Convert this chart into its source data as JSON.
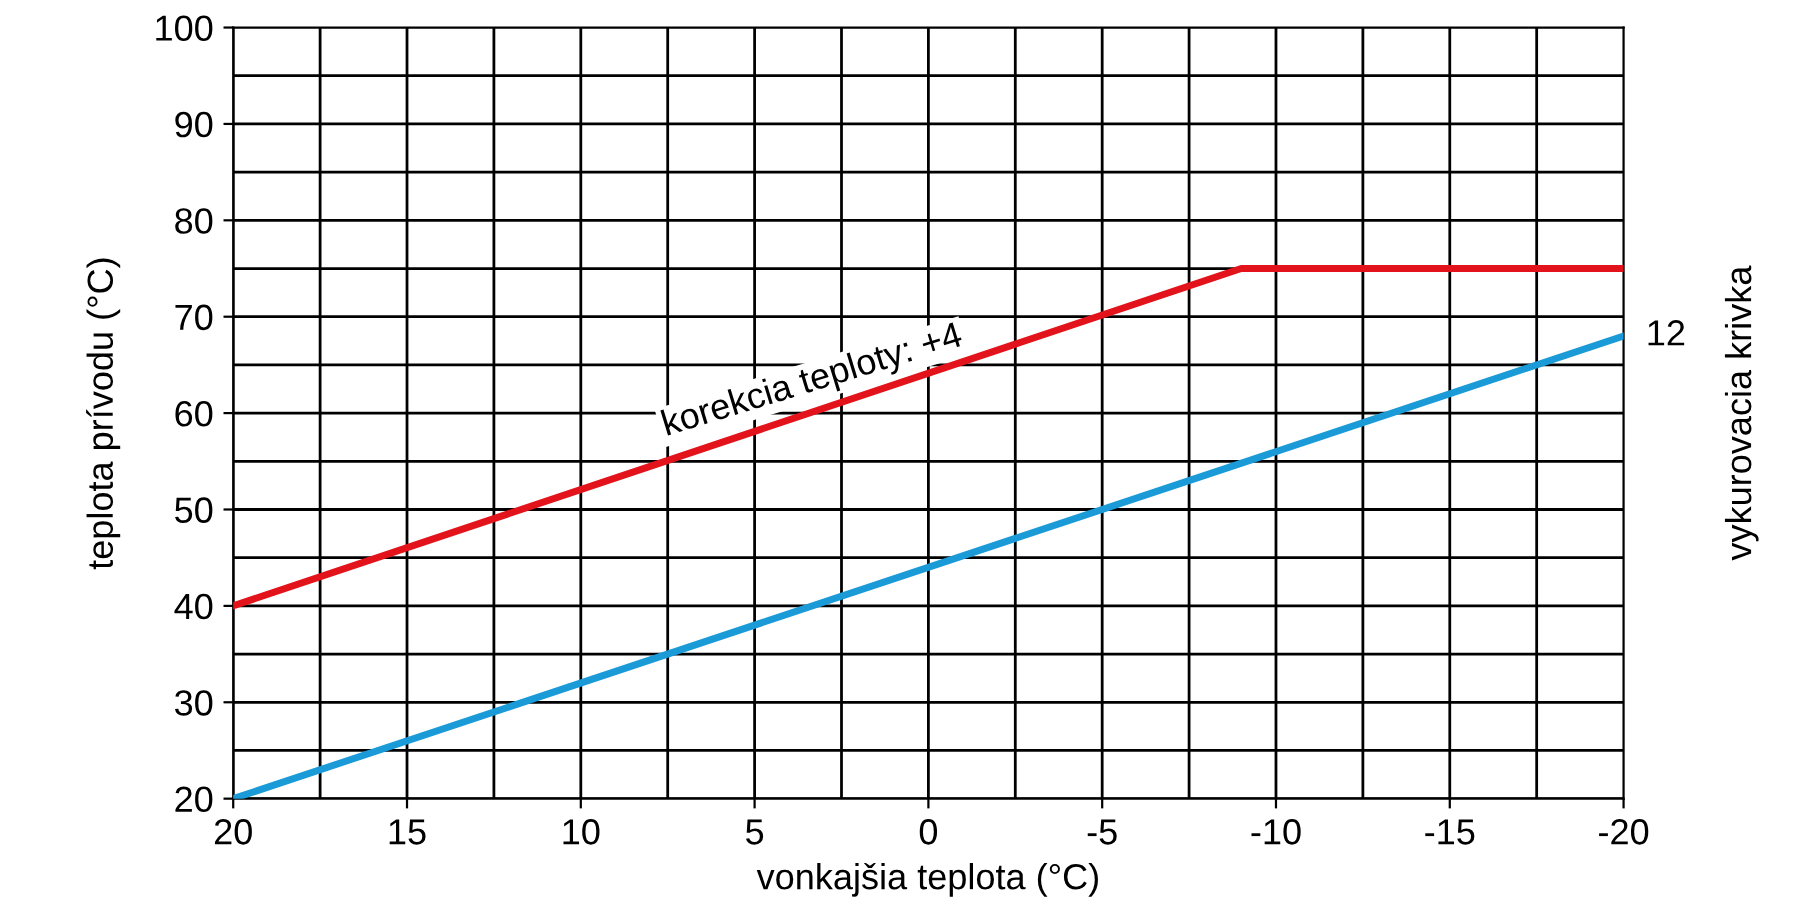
{
  "chart_data": {
    "type": "line",
    "xlabel": "vonkajšia teplota (°C)",
    "ylabel": "teplota prívodu (°C)",
    "y2label": "vykurovacia krivka",
    "xlim": [
      20,
      -20
    ],
    "xticks": [
      20,
      15,
      10,
      5,
      0,
      {
        "value": -5,
        "label": "-5"
      },
      {
        "value": -10,
        "label": "-10"
      },
      {
        "value": -15,
        "label": "-15"
      },
      {
        "value": -20,
        "label": "-20"
      }
    ],
    "ylim": [
      20,
      100
    ],
    "yticks": [
      20,
      30,
      40,
      50,
      60,
      70,
      80,
      90,
      100
    ],
    "grid": true,
    "marker": "none",
    "line_style": "solid",
    "series": [
      {
        "color": "#e3131b",
        "x": [
          20,
          -9,
          -20
        ],
        "values": [
          40,
          75,
          75
        ]
      },
      {
        "name": "12",
        "color": "#1a9ad6",
        "x": [
          20,
          -20
        ],
        "values": [
          20,
          68
        ]
      }
    ],
    "annotations": [
      "korekcia teploty: +4"
    ]
  }
}
